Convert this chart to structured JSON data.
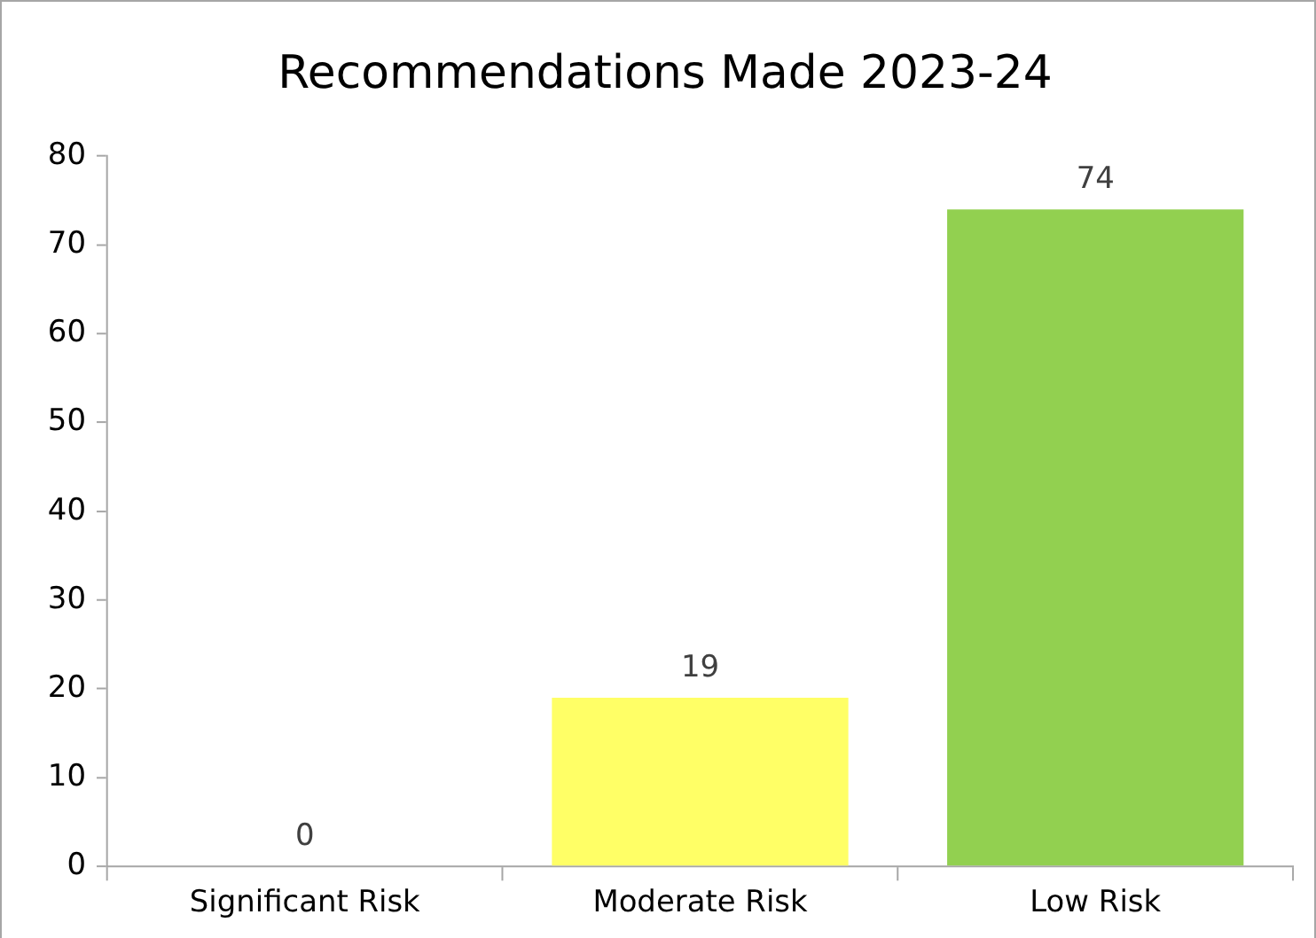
{
  "chart_data": {
    "type": "bar",
    "title": "Recommendations Made 2023-24",
    "categories": [
      "Significant Risk",
      "Moderate Risk",
      "Low Risk"
    ],
    "values": [
      0,
      19,
      74
    ],
    "colors": [
      "#ff0000",
      "#ffff66",
      "#92d050"
    ],
    "ylim": [
      0,
      80
    ],
    "yticks": [
      0,
      10,
      20,
      30,
      40,
      50,
      60,
      70,
      80
    ],
    "grid": false,
    "legend": false,
    "data_labels": true
  }
}
